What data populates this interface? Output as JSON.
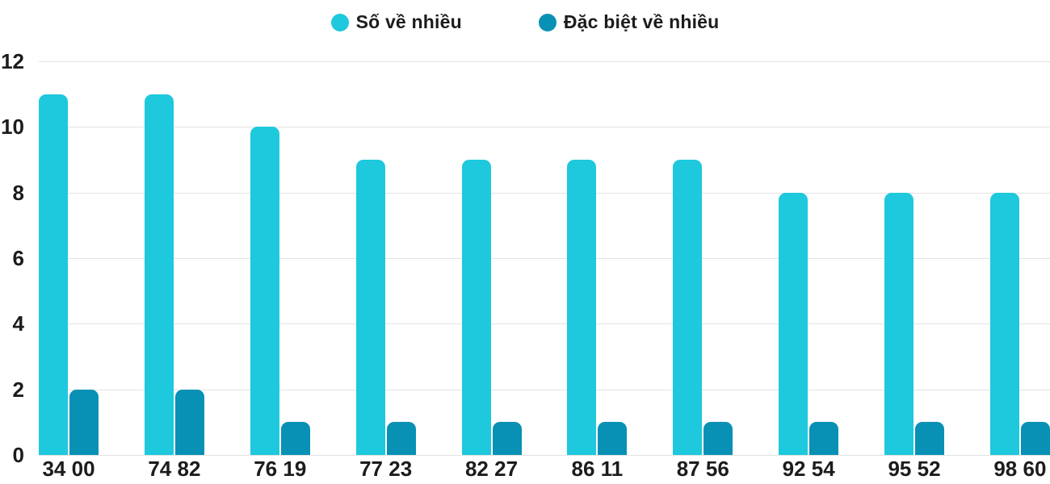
{
  "chart_data": {
    "type": "bar",
    "title": "",
    "xlabel": "",
    "ylabel": "",
    "categories": [
      "34 00",
      "74 82",
      "76 19",
      "77 23",
      "82 27",
      "86 11",
      "87 56",
      "92 54",
      "95 52",
      "98 60"
    ],
    "series": [
      {
        "name": "Số về nhiều",
        "color": "#1ec8dd",
        "values": [
          11,
          11,
          10,
          9,
          9,
          9,
          9,
          8,
          8,
          8
        ]
      },
      {
        "name": "Đặc biệt về nhiều",
        "color": "#0891b4",
        "values": [
          2,
          2,
          1,
          1,
          1,
          1,
          1,
          1,
          1,
          1
        ]
      }
    ],
    "ylim": [
      0,
      12
    ],
    "yticks": [
      0,
      2,
      4,
      6,
      8,
      10,
      12
    ],
    "grid": true,
    "legend_position": "top-center"
  },
  "colors": {
    "grid": "#e3e3e3",
    "text": "#1c1c1c",
    "background": "#ffffff"
  }
}
